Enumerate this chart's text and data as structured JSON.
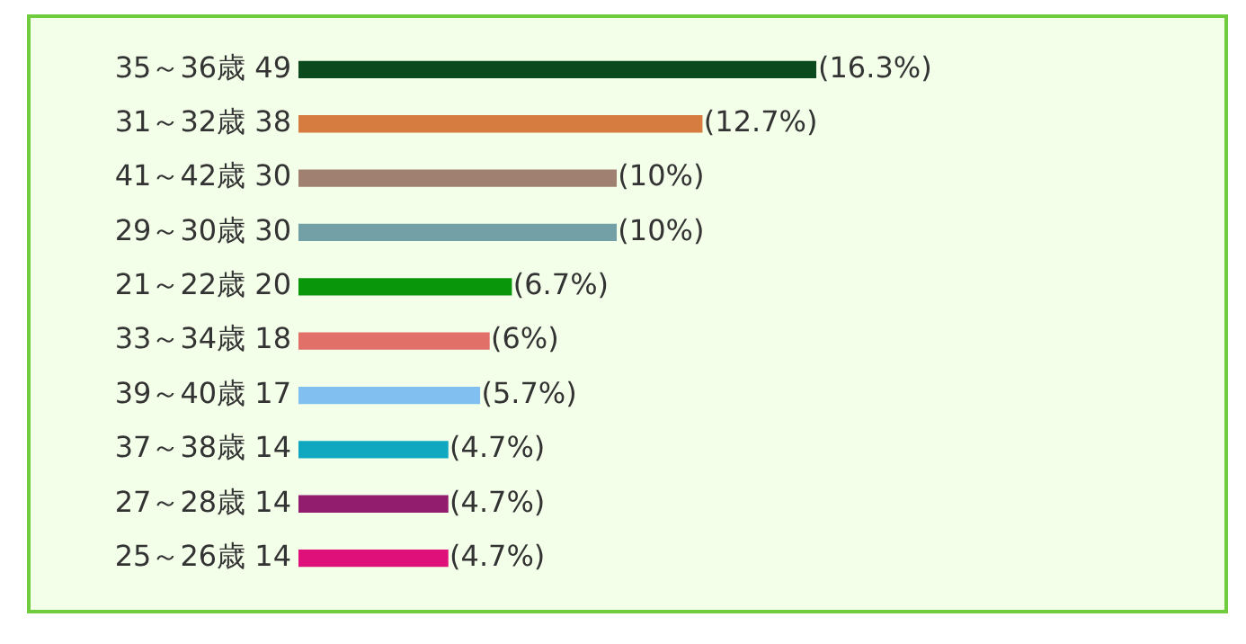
{
  "chart_data": {
    "type": "bar",
    "orientation": "horizontal",
    "categories": [
      "35～36歳 49",
      "31～32歳 38",
      "41～42歳 30",
      "29～30歳 30",
      "21～22歳 20",
      "33～34歳 18",
      "39～40歳 17",
      "37～38歳 14",
      "27～28歳 14",
      "25～26歳 14"
    ],
    "values": [
      16.3,
      12.7,
      10,
      10,
      6.7,
      6,
      5.7,
      4.7,
      4.7,
      4.7
    ],
    "colors": [
      "#0b4a1c",
      "#d67c40",
      "#a08070",
      "#72a0a6",
      "#0a960a",
      "#e07068",
      "#80bff0",
      "#10a8c0",
      "#921c6e",
      "#e0107a"
    ],
    "value_labels": [
      "(16.3%)",
      "(12.7%)",
      "(10%)",
      "(10%)",
      "(6.7%)",
      "(6%)",
      "(5.7%)",
      "(4.7%)",
      "(4.7%)",
      "(4.7%)"
    ],
    "grid": false,
    "legend": false
  }
}
